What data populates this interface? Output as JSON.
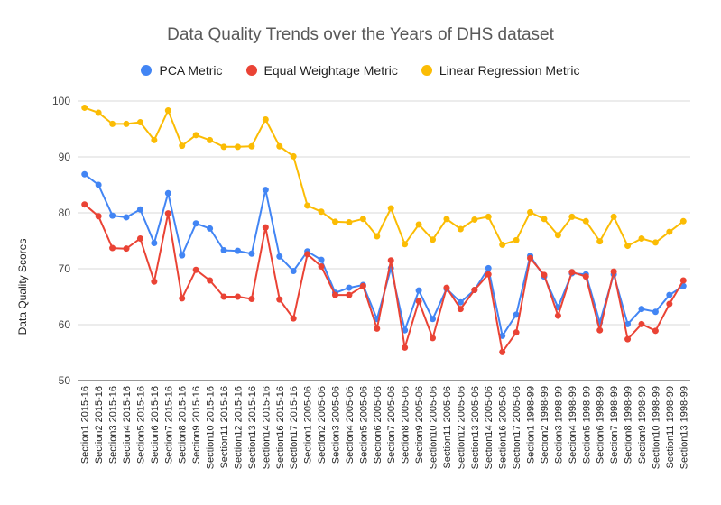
{
  "chart_data": {
    "type": "line",
    "title": "Data Quality Trends over the Years of DHS dataset",
    "xlabel": "",
    "ylabel": "Data Quality Scores",
    "ylim": [
      50,
      100
    ],
    "yticks": [
      50,
      60,
      70,
      80,
      90,
      100
    ],
    "grid": true,
    "legend_position": "top",
    "categories": [
      "Section1 2015-16",
      "Section2 2015-16",
      "Section3 2015-16",
      "Section4 2015-16",
      "Section5 2015-16",
      "Section6 2015-16",
      "Section7 2015-16",
      "Section8 2015-16",
      "Section9 2015-16",
      "Section10 2015-16",
      "Section11 2015-16",
      "Section12 2015-16",
      "Section13 2015-16",
      "Section14 2015-16",
      "Section16 2015-16",
      "Section17 2015-16",
      "Section1 2005-06",
      "Section2 2005-06",
      "Section3 2005-06",
      "Section4 2005-06",
      "Section5 2005-06",
      "Section6 2005-06",
      "Section7 2005-06",
      "Section8 2005-06",
      "Section9 2005-06",
      "Section10 2005-06",
      "Section11 2005-06",
      "Section12 2005-06",
      "Section13 2005-06",
      "Section14 2005-06",
      "Section16 2005-06",
      "Section17 2005-06",
      "Section1 1998-99",
      "Section2 1998-99",
      "Section3 1998-99",
      "Section4 1998-99",
      "Section5 1998-99",
      "Section6 1998-99",
      "Section7 1998-99",
      "Section8 1998-99",
      "Section9 1998-99",
      "Section10 1998-99",
      "Section11 1998-99",
      "Section13 1998-99"
    ],
    "series": [
      {
        "name": "PCA Metric",
        "color": "#4285F4",
        "values": [
          86.9,
          85.0,
          79.5,
          79.2,
          80.6,
          74.6,
          83.5,
          72.4,
          78.1,
          77.2,
          73.3,
          73.2,
          72.7,
          84.1,
          72.2,
          69.6,
          73.1,
          71.6,
          65.7,
          66.6,
          67.1,
          61.0,
          70.1,
          59.0,
          66.1,
          61.0,
          66.4,
          64.0,
          66.2,
          70.1,
          58.0,
          61.8,
          72.3,
          68.6,
          63.1,
          69.2,
          69.0,
          60.4,
          69.0,
          60.1,
          62.8,
          62.3,
          65.3,
          66.9
        ]
      },
      {
        "name": "Equal Weightage Metric",
        "color": "#EA4335",
        "values": [
          81.5,
          79.4,
          73.7,
          73.6,
          75.4,
          67.7,
          79.9,
          64.7,
          69.8,
          67.9,
          65.0,
          65.0,
          64.6,
          77.4,
          64.5,
          61.1,
          72.6,
          70.4,
          65.3,
          65.3,
          66.9,
          59.3,
          71.5,
          55.9,
          64.2,
          57.6,
          66.6,
          62.8,
          66.2,
          69.0,
          55.1,
          58.6,
          71.9,
          68.9,
          61.6,
          69.4,
          68.6,
          59.0,
          69.5,
          57.4,
          60.1,
          58.9,
          63.7,
          67.9
        ]
      },
      {
        "name": "Linear Regression Metric",
        "color": "#FBBC04",
        "values": [
          98.8,
          97.9,
          95.9,
          95.9,
          96.2,
          93.0,
          98.3,
          92.0,
          93.9,
          93.0,
          91.8,
          91.8,
          91.9,
          96.7,
          91.9,
          90.1,
          81.3,
          80.2,
          78.4,
          78.3,
          78.9,
          75.8,
          80.8,
          74.4,
          77.9,
          75.2,
          78.9,
          77.1,
          78.8,
          79.3,
          74.3,
          75.1,
          80.1,
          78.9,
          76.0,
          79.3,
          78.5,
          74.9,
          79.3,
          74.1,
          75.4,
          74.7,
          76.6,
          78.5
        ]
      }
    ]
  }
}
